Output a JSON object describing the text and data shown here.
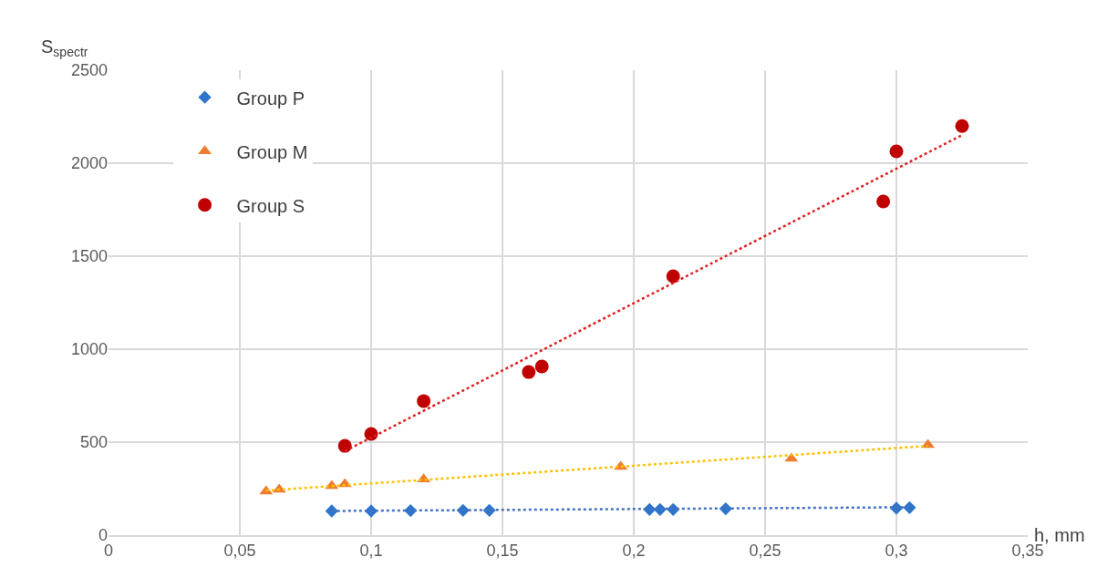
{
  "chart_data": {
    "type": "scatter",
    "xlabel": "h, mm",
    "ylabel": "S$_{spectr}$",
    "xlim": [
      0,
      0.35
    ],
    "ylim": [
      0,
      2500
    ],
    "xticks": [
      0,
      {
        "value": 0.05,
        "label": "0,05"
      },
      {
        "value": 0.1,
        "label": "0,1"
      },
      {
        "value": 0.15,
        "label": "0,15"
      },
      {
        "value": 0.2,
        "label": "0,2"
      },
      {
        "value": 0.25,
        "label": "0,25"
      },
      {
        "value": 0.3,
        "label": "0,3"
      },
      {
        "value": 0.35,
        "label": "0,35"
      }
    ],
    "yticks": [
      0,
      500,
      1000,
      1500,
      2000,
      2500
    ],
    "grid": true,
    "legend": "top left",
    "series": [
      {
        "name": "Group P",
        "color": "#2e75c9",
        "marker": "diamond",
        "x": [
          0.085,
          0.1,
          0.115,
          0.135,
          0.145,
          0.206,
          0.21,
          0.215,
          0.235,
          0.3,
          0.305
        ],
        "values": [
          130,
          130,
          132,
          133,
          133,
          138,
          138,
          138,
          142,
          145,
          148
        ]
      },
      {
        "name": "Group M",
        "color": "#ed7d31",
        "marker": "triangle",
        "x": [
          0.06,
          0.065,
          0.085,
          0.09,
          0.12,
          0.195,
          0.26,
          0.312
        ],
        "values": [
          235,
          245,
          265,
          275,
          300,
          368,
          412,
          485
        ]
      },
      {
        "name": "Group S",
        "color": "#c00000",
        "marker": "circle",
        "x": [
          0.09,
          0.1,
          0.12,
          0.16,
          0.165,
          0.215,
          0.295,
          0.3,
          0.325
        ],
        "values": [
          480,
          544,
          721,
          877,
          907,
          1392,
          1794,
          2064,
          2200
        ]
      },
      {
        "type": "line",
        "color": "#4472c4",
        "line_style": "dotted",
        "marker": "none",
        "x": [
          0.085,
          0.305
        ],
        "values": [
          130,
          150
        ]
      },
      {
        "type": "line",
        "color": "#ffc000",
        "line_style": "dotted",
        "marker": "none",
        "x": [
          0.06,
          0.312
        ],
        "values": [
          240,
          480
        ]
      },
      {
        "type": "line",
        "color": "#e02020",
        "line_style": "dotted",
        "marker": "none",
        "x": [
          0.09,
          0.325
        ],
        "values": [
          452,
          2151
        ]
      }
    ]
  }
}
